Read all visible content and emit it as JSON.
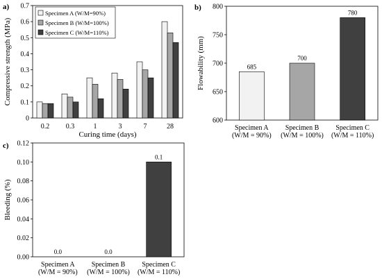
{
  "chart_data": [
    {
      "panel": "a)",
      "type": "bar",
      "xlabel": "Curing time (days)",
      "ylabel": "Compressive strength (MPa)",
      "ylim": [
        0,
        0.7
      ],
      "yticks": [
        "0",
        "0.1",
        "0.2",
        "0.3",
        "0.4",
        "0.5",
        "0.6",
        "0.7"
      ],
      "categories": [
        "0.2",
        "0.3",
        "1",
        "3",
        "7",
        "28"
      ],
      "series": [
        {
          "name": "Specimen A (W/M=90%)",
          "color": "#f2f2f2",
          "values": [
            0.1,
            0.15,
            0.25,
            0.28,
            0.35,
            0.6
          ]
        },
        {
          "name": "Specimen B (W/M=100%)",
          "color": "#a6a6a6",
          "values": [
            0.09,
            0.13,
            0.21,
            0.24,
            0.3,
            0.53
          ]
        },
        {
          "name": "Specimen C (W/M=110%)",
          "color": "#404040",
          "values": [
            0.09,
            0.1,
            0.12,
            0.18,
            0.25,
            0.47
          ]
        }
      ],
      "grid": false,
      "legend": "top-left"
    },
    {
      "panel": "b)",
      "type": "bar",
      "xlabel": "",
      "ylabel": "Flowability (mm)",
      "ylim": [
        600,
        800
      ],
      "yticks": [
        "600",
        "650",
        "700",
        "750",
        "800"
      ],
      "categories": [
        [
          "Specimen A",
          "(W/M = 90%)"
        ],
        [
          "Specimen B",
          "(W/M = 100%)"
        ],
        [
          "Specimen C",
          "(W/M = 110%)"
        ]
      ],
      "values": [
        685,
        700,
        780
      ],
      "data_labels": [
        "685",
        "700",
        "780"
      ],
      "colors": [
        "#f2f2f2",
        "#a6a6a6",
        "#404040"
      ],
      "grid": false
    },
    {
      "panel": "c)",
      "type": "bar",
      "xlabel": "",
      "ylabel": "Bleeding (%)",
      "ylim": [
        0,
        0.12
      ],
      "yticks": [
        "0.00",
        "0.02",
        "0.04",
        "0.06",
        "0.08",
        "0.10",
        "0.12"
      ],
      "categories": [
        [
          "Specimen A",
          "(W/M = 90%)"
        ],
        [
          "Specimen B",
          "(W/M = 100%)"
        ],
        [
          "Specimen C",
          "(W/M = 110%)"
        ]
      ],
      "values": [
        0.0,
        0.0,
        0.1
      ],
      "data_labels": [
        "0.0",
        "0.0",
        "0.1"
      ],
      "colors": [
        "#f2f2f2",
        "#a6a6a6",
        "#404040"
      ],
      "grid": false
    }
  ]
}
